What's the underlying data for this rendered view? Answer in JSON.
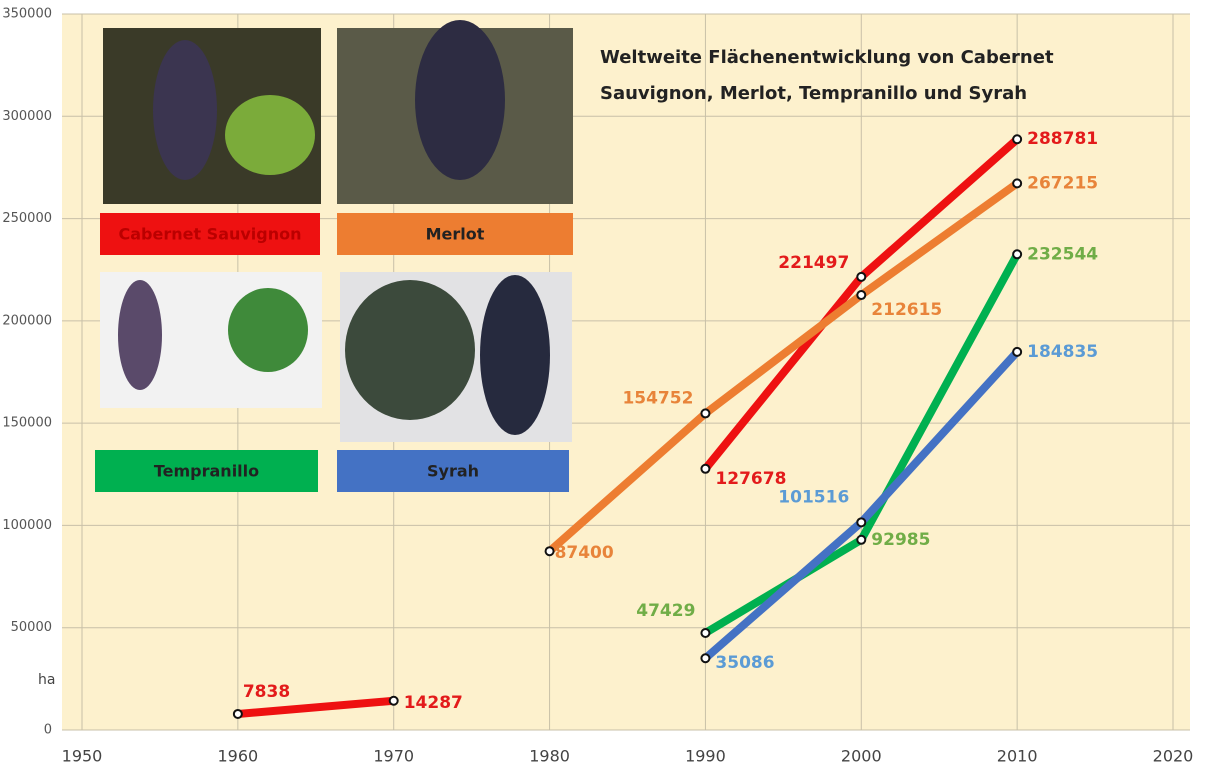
{
  "chart_data": {
    "type": "line",
    "title_line1": "Weltweite Flächenentwicklung von Cabernet",
    "title_line2": "Sauvignon, Merlot, Tempranillo  und Syrah",
    "y_label": "ha",
    "x": [
      1960,
      1970,
      1980,
      1990,
      2000,
      2010
    ],
    "series": [
      {
        "name": "Cabernet Sauvignon",
        "color": "#ee1111",
        "label_color": "#e31b1b",
        "values": [
          7838,
          14287,
          null,
          127678,
          221497,
          288781
        ]
      },
      {
        "name": "Merlot",
        "color": "#ed7d31",
        "label_color": "#e8843a",
        "values": [
          null,
          null,
          87400,
          154752,
          212615,
          267215
        ]
      },
      {
        "name": "Tempranillo",
        "color": "#00b050",
        "label_color": "#70ad47",
        "values": [
          null,
          null,
          null,
          47429,
          92985,
          232544
        ]
      },
      {
        "name": "Syrah",
        "color": "#4472c4",
        "label_color": "#5b9bd5",
        "values": [
          null,
          null,
          null,
          35086,
          101516,
          184835
        ]
      }
    ],
    "xlim": [
      1950,
      2020
    ],
    "xticks": [
      1950,
      1960,
      1970,
      1980,
      1990,
      2000,
      2010,
      2020
    ],
    "ylim": [
      0,
      350000
    ],
    "yticks": [
      0,
      50000,
      100000,
      150000,
      200000,
      250000,
      300000,
      350000
    ],
    "grid": true
  }
}
